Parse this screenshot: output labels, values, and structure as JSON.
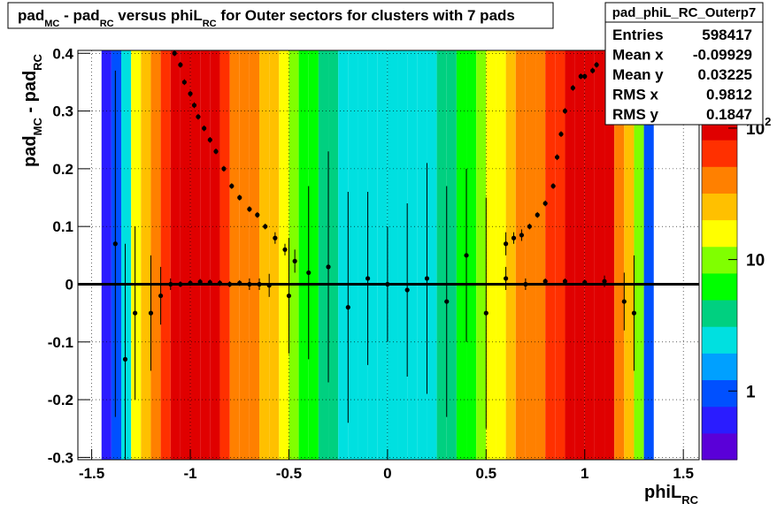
{
  "chart_data": {
    "type": "heatmap",
    "title_parts": [
      "pad",
      "MC",
      " - pad",
      "RC",
      " versus phiL",
      "RC",
      " for Outer sectors for clusters with 7 pads"
    ],
    "xlabel_parts": [
      "phiL",
      "RC"
    ],
    "ylabel_parts": [
      "pad",
      "MC",
      " - pad",
      "RC"
    ],
    "xlim": [
      -1.57,
      1.58
    ],
    "ylim": [
      -0.304,
      0.405
    ],
    "xticks": [
      -1.5,
      -1,
      -0.5,
      0,
      0.5,
      1,
      1.5
    ],
    "yticks": [
      -0.3,
      -0.2,
      -0.1,
      0,
      0.1,
      0.2,
      0.3,
      0.4
    ],
    "grid": true,
    "zlim": [
      0.3,
      130
    ],
    "zscale": "log",
    "zticks": [
      1,
      10,
      {
        "value": 100,
        "label": "10",
        "exponent": "2"
      }
    ],
    "palette": [
      "#5a00d8",
      "#2a1cff",
      "#0050ff",
      "#00a0ff",
      "#00e0e0",
      "#00d080",
      "#00ff00",
      "#80ff00",
      "#ffff00",
      "#ffc000",
      "#ff8000",
      "#ff3000",
      "#e00000"
    ],
    "xbins": [
      -1.45,
      -1.4,
      -1.35,
      -1.3,
      -1.25,
      -1.2,
      -1.15,
      -1.1,
      -1.05,
      -1.0,
      -0.95,
      -0.9,
      -0.85,
      -0.8,
      -0.75,
      -0.7,
      -0.65,
      -0.6,
      -0.55,
      -0.5,
      -0.45,
      -0.4,
      -0.35,
      -0.3,
      -0.25,
      -0.2,
      -0.15,
      -0.1,
      -0.05,
      0,
      0.05,
      0.1,
      0.15,
      0.2,
      0.25,
      0.3,
      0.35,
      0.4,
      0.45,
      0.5,
      0.55,
      0.6,
      0.65,
      0.7,
      0.75,
      0.8,
      0.85,
      0.9,
      0.95,
      1.0,
      1.05,
      1.1,
      1.15,
      1.2,
      1.25,
      1.3,
      1.35
    ],
    "values": [
      0.5,
      0.8,
      2,
      15,
      30,
      50,
      80,
      110,
      140,
      150,
      130,
      90,
      60,
      45,
      40,
      35,
      30,
      22,
      15,
      10,
      7,
      5,
      4,
      3.5,
      3,
      2.5,
      2,
      2,
      2,
      2,
      2,
      2.5,
      3,
      3,
      3.5,
      4,
      5,
      7,
      10,
      14,
      20,
      28,
      35,
      40,
      45,
      55,
      70,
      100,
      140,
      150,
      130,
      90,
      50,
      25,
      8,
      1
    ],
    "reference_line": 0,
    "profiles": [
      {
        "x": [
          -1.08,
          -1.05,
          -1.03,
          -1.0,
          -0.98,
          -0.96,
          -0.93,
          -0.9,
          -0.87,
          -0.83,
          -0.79,
          -0.75,
          -0.7,
          -0.66,
          -0.62,
          -0.57,
          -0.52,
          -0.47
        ],
        "y": [
          0.4,
          0.38,
          0.35,
          0.33,
          0.31,
          0.29,
          0.27,
          0.25,
          0.23,
          0.2,
          0.17,
          0.15,
          0.13,
          0.12,
          0.1,
          0.08,
          0.06,
          0.04
        ],
        "errors": [
          0.005,
          0.005,
          0.005,
          0.005,
          0.005,
          0.005,
          0.005,
          0.005,
          0.005,
          0.005,
          0.005,
          0.005,
          0.005,
          0.005,
          0.005,
          0.01,
          0.01,
          0.02
        ]
      },
      {
        "x": [
          0.6,
          0.64,
          0.68,
          0.72,
          0.76,
          0.8,
          0.84,
          0.86,
          0.88,
          0.9,
          0.94,
          0.98,
          1.0,
          1.04,
          1.06
        ],
        "y": [
          0.07,
          0.08,
          0.085,
          0.1,
          0.12,
          0.14,
          0.17,
          0.22,
          0.26,
          0.3,
          0.34,
          0.36,
          0.36,
          0.37,
          0.38
        ],
        "errors": [
          0.02,
          0.01,
          0.01,
          0.005,
          0.005,
          0.005,
          0.005,
          0.005,
          0.005,
          0.005,
          0.005,
          0.005,
          0.005,
          0.005,
          0.005
        ]
      },
      {
        "x": [
          -1.38,
          -1.33,
          -1.28,
          -1.2,
          -1.15,
          -1.1,
          -1.05,
          -1.0,
          -0.95,
          -0.9,
          -0.85,
          -0.8,
          -0.75,
          -0.7,
          -0.65,
          -0.6,
          -0.5,
          -0.4,
          -0.3,
          -0.2,
          -0.1,
          0,
          0.1,
          0.2,
          0.3,
          0.4,
          0.5,
          0.6,
          0.7,
          0.8,
          0.9,
          1.0,
          1.1,
          1.2,
          1.25
        ],
        "y": [
          0.07,
          -0.13,
          -0.05,
          -0.05,
          -0.02,
          0,
          0,
          0.002,
          0.004,
          0.003,
          0.002,
          0,
          0.002,
          0,
          0,
          -0.002,
          -0.02,
          0.02,
          0.03,
          -0.04,
          0.01,
          0,
          -0.01,
          0.01,
          -0.03,
          0.05,
          -0.05,
          0.01,
          0,
          0.005,
          0.005,
          0.003,
          0.005,
          -0.03,
          -0.05
        ],
        "errors": [
          0.3,
          0.2,
          0.15,
          0.1,
          0.05,
          0.01,
          0.005,
          0.005,
          0.005,
          0.005,
          0.005,
          0.005,
          0.005,
          0.01,
          0.01,
          0.02,
          0.1,
          0.15,
          0.2,
          0.2,
          0.15,
          0.1,
          0.15,
          0.2,
          0.2,
          0.15,
          0.2,
          0.02,
          0.01,
          0.005,
          0.005,
          0.005,
          0.01,
          0.05,
          0.1
        ]
      }
    ],
    "stats": {
      "name": "pad_phiL_RC_Outerp7",
      "rows": [
        [
          "Entries",
          598417
        ],
        [
          "Mean x",
          -0.09929
        ],
        [
          "Mean y",
          0.03225
        ],
        [
          "RMS x",
          0.9812
        ],
        [
          "RMS y",
          0.1847
        ]
      ]
    }
  }
}
